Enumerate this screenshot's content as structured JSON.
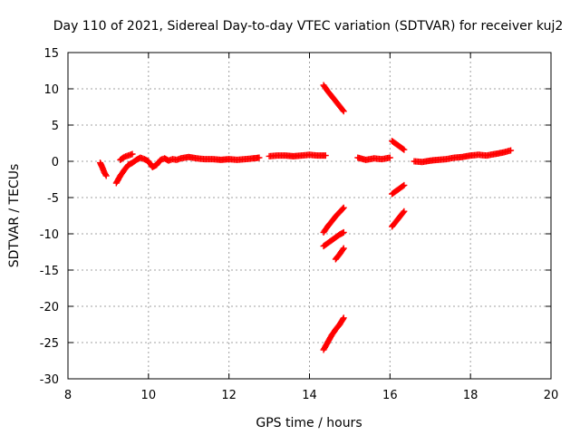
{
  "chart_data": {
    "type": "scatter",
    "title": "Day 110 of 2021, Sidereal Day-to-day VTEC variation (SDTVAR) for receiver kuj2",
    "xlabel": "GPS time / hours",
    "ylabel": "SDTVAR / TECUs",
    "xlim": [
      8,
      20
    ],
    "ylim": [
      -30,
      15
    ],
    "xticks": [
      8,
      10,
      12,
      14,
      16,
      18,
      20
    ],
    "yticks": [
      -30,
      -25,
      -20,
      -15,
      -10,
      -5,
      0,
      5,
      10,
      15
    ],
    "grid": true,
    "marker": "+",
    "color": "#ff0000",
    "series": [
      {
        "name": "seg1",
        "x": [
          8.8,
          8.85,
          8.9,
          8.95
        ],
        "y": [
          -0.2,
          -0.8,
          -1.5,
          -2.0
        ]
      },
      {
        "name": "seg2",
        "x": [
          9.2,
          9.3,
          9.4,
          9.5,
          9.6,
          9.7,
          9.8,
          9.9,
          10.0,
          10.1,
          10.2,
          10.3,
          10.4,
          10.5,
          10.6,
          10.7,
          10.8,
          10.9,
          11.0,
          11.2,
          11.4,
          11.6,
          11.8,
          12.0,
          12.2,
          12.4,
          12.6,
          12.75
        ],
        "y": [
          -3.0,
          -2.0,
          -1.2,
          -0.5,
          -0.2,
          0.2,
          0.5,
          0.3,
          0.0,
          -0.8,
          -0.5,
          0.2,
          0.4,
          0.1,
          0.3,
          0.2,
          0.4,
          0.5,
          0.6,
          0.4,
          0.3,
          0.3,
          0.2,
          0.3,
          0.2,
          0.3,
          0.4,
          0.5
        ]
      },
      {
        "name": "seg2b",
        "x": [
          9.3,
          9.4,
          9.5,
          9.6
        ],
        "y": [
          0.2,
          0.6,
          0.8,
          1.0
        ]
      },
      {
        "name": "seg3",
        "x": [
          13.0,
          13.2,
          13.4,
          13.6,
          13.8,
          14.0,
          14.2,
          14.4
        ],
        "y": [
          0.7,
          0.8,
          0.8,
          0.7,
          0.8,
          0.9,
          0.8,
          0.8
        ]
      },
      {
        "name": "seg4",
        "x": [
          15.2,
          15.4,
          15.6,
          15.8,
          16.0
        ],
        "y": [
          0.5,
          0.2,
          0.4,
          0.3,
          0.5
        ]
      },
      {
        "name": "seg5",
        "x": [
          16.6,
          16.8,
          17.0,
          17.2,
          17.4,
          17.6,
          17.8,
          18.0,
          18.2,
          18.4,
          18.6,
          18.8,
          19.0
        ],
        "y": [
          0.0,
          -0.1,
          0.1,
          0.2,
          0.3,
          0.5,
          0.6,
          0.8,
          0.9,
          0.8,
          1.0,
          1.2,
          1.5
        ]
      },
      {
        "name": "arc1",
        "x": [
          14.35,
          14.45,
          14.55,
          14.65,
          14.75,
          14.85
        ],
        "y": [
          10.5,
          9.7,
          9.0,
          8.3,
          7.6,
          6.9
        ]
      },
      {
        "name": "arc2",
        "x": [
          16.05,
          16.15,
          16.25,
          16.35
        ],
        "y": [
          2.8,
          2.4,
          2.0,
          1.6
        ]
      },
      {
        "name": "arc3",
        "x": [
          16.05,
          16.15,
          16.25,
          16.35
        ],
        "y": [
          -4.5,
          -4.1,
          -3.7,
          -3.3
        ]
      },
      {
        "name": "arc4",
        "x": [
          14.35,
          14.45,
          14.55,
          14.65,
          14.75,
          14.85
        ],
        "y": [
          -9.8,
          -9.0,
          -8.3,
          -7.6,
          -7.0,
          -6.4
        ]
      },
      {
        "name": "arc5",
        "x": [
          16.05,
          16.15,
          16.25,
          16.35
        ],
        "y": [
          -9.0,
          -8.3,
          -7.6,
          -6.9
        ]
      },
      {
        "name": "arc6",
        "x": [
          14.35,
          14.45,
          14.55,
          14.65,
          14.75,
          14.85
        ],
        "y": [
          -11.7,
          -11.3,
          -10.9,
          -10.5,
          -10.1,
          -9.8
        ]
      },
      {
        "name": "arc7",
        "x": [
          14.65,
          14.75,
          14.85
        ],
        "y": [
          -13.5,
          -12.8,
          -12.0
        ]
      },
      {
        "name": "arc8",
        "x": [
          14.35,
          14.45,
          14.55,
          14.65,
          14.75,
          14.85
        ],
        "y": [
          -26.0,
          -25.0,
          -24.0,
          -23.2,
          -22.5,
          -21.6
        ]
      }
    ]
  }
}
